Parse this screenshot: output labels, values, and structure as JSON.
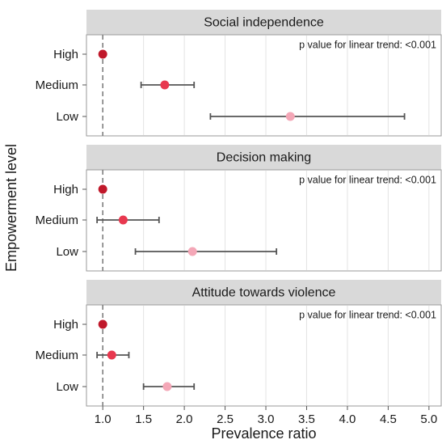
{
  "chart_data": {
    "type": "scatter",
    "subtype": "forest-plot-faceted",
    "xlabel": "Prevalence ratio",
    "ylabel": "Empowerment level",
    "xlim": [
      0.8,
      5.15
    ],
    "xticks": [
      1.0,
      1.5,
      2.0,
      2.5,
      3.0,
      3.5,
      4.0,
      4.5,
      5.0
    ],
    "xtick_labels": [
      "1.0",
      "1.5",
      "2.0",
      "2.5",
      "3.0",
      "3.5",
      "4.0",
      "4.5",
      "5.0"
    ],
    "reference_line": 1.0,
    "grid": "vertical-only",
    "level_colors": {
      "High": "#c0182a",
      "Medium": "#e8384f",
      "Low": "#f4a7b7"
    },
    "panels": [
      {
        "title": "Social independence",
        "annotation": "p value for linear trend: <0.001",
        "rows": [
          {
            "level": "High",
            "estimate": 1.0,
            "lower": 1.0,
            "upper": 1.0
          },
          {
            "level": "Medium",
            "estimate": 1.76,
            "lower": 1.47,
            "upper": 2.12
          },
          {
            "level": "Low",
            "estimate": 3.3,
            "lower": 2.32,
            "upper": 4.7
          }
        ]
      },
      {
        "title": "Decision making",
        "annotation": "p value for linear trend: <0.001",
        "rows": [
          {
            "level": "High",
            "estimate": 1.0,
            "lower": 1.0,
            "upper": 1.0
          },
          {
            "level": "Medium",
            "estimate": 1.25,
            "lower": 0.93,
            "upper": 1.69
          },
          {
            "level": "Low",
            "estimate": 2.1,
            "lower": 1.4,
            "upper": 3.13
          }
        ]
      },
      {
        "title": "Attitude towards violence",
        "annotation": "p value for linear trend: <0.001",
        "rows": [
          {
            "level": "High",
            "estimate": 1.0,
            "lower": 1.0,
            "upper": 1.0
          },
          {
            "level": "Medium",
            "estimate": 1.11,
            "lower": 0.93,
            "upper": 1.32
          },
          {
            "level": "Low",
            "estimate": 1.79,
            "lower": 1.5,
            "upper": 2.12
          }
        ]
      }
    ]
  }
}
